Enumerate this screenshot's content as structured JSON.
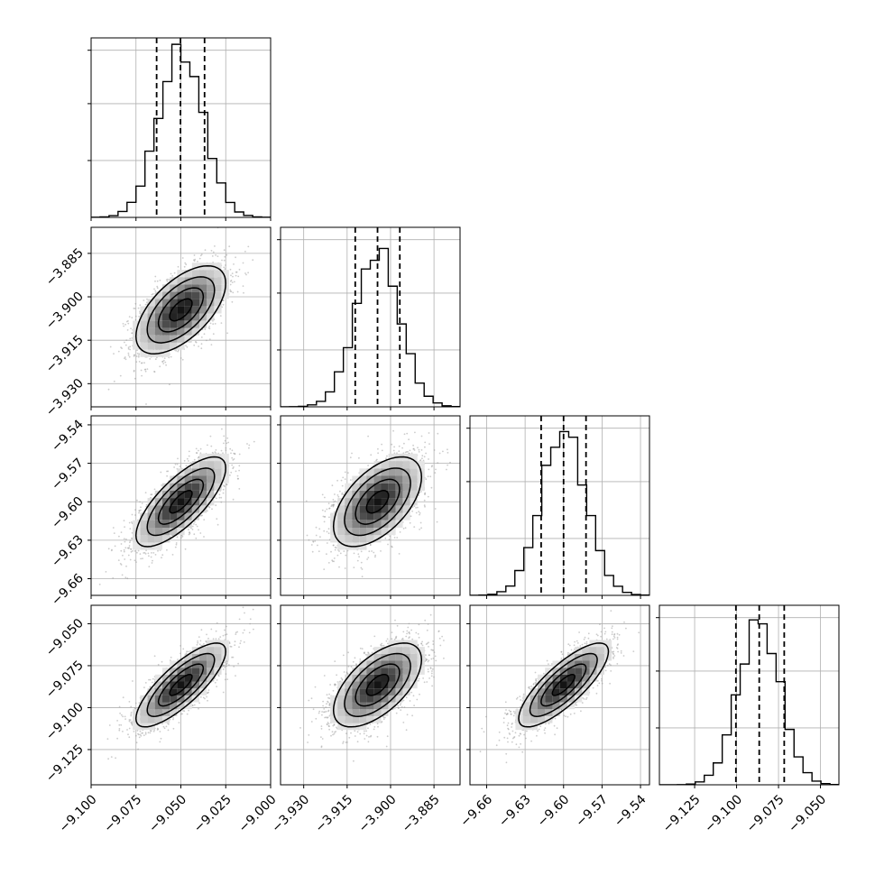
{
  "chart_data": {
    "type": "corner",
    "grid": true,
    "parameters": [
      {
        "ticks": [
          -9.1,
          -9.075,
          -9.05,
          -9.025,
          -9.0
        ],
        "tick_labels": [
          "−9.100",
          "−9.075",
          "−9.050",
          "−9.025",
          "−9.000"
        ],
        "range": [
          -9.1,
          -9.0
        ],
        "center": -9.05,
        "sigma": 0.0125,
        "quantiles": [
          -9.0635,
          -9.0502,
          -9.0368
        ],
        "hist_peak": 0.93
      },
      {
        "ticks": [
          -3.93,
          -3.915,
          -3.9,
          -3.885
        ],
        "tick_labels": [
          "−3.930",
          "−3.915",
          "−3.900",
          "−3.885"
        ],
        "range": [
          -3.938,
          -3.876
        ],
        "center": -3.9045,
        "sigma": 0.0076,
        "quantiles": [
          -3.9122,
          -3.9045,
          -3.8968
        ],
        "hist_peak": 0.87
      },
      {
        "ticks": [
          -9.66,
          -9.63,
          -9.6,
          -9.57,
          -9.54
        ],
        "tick_labels": [
          "−9.66",
          "−9.63",
          "−9.60",
          "−9.57",
          "−9.54"
        ],
        "range": [
          -9.673,
          -9.533
        ],
        "center": -9.6,
        "sigma": 0.0175,
        "quantiles": [
          -9.6175,
          -9.6,
          -9.5825
        ],
        "hist_peak": 0.92
      },
      {
        "ticks": [
          -9.125,
          -9.1,
          -9.075,
          -9.05
        ],
        "tick_labels": [
          "−9.125",
          "−9.100",
          "−9.075",
          "−9.050"
        ],
        "range": [
          -9.146,
          -9.039
        ],
        "center": -9.0865,
        "sigma": 0.0125,
        "quantiles": [
          -9.1004,
          -9.0865,
          -9.0716
        ],
        "hist_peak": 0.91
      }
    ],
    "correlations": [
      [
        1.0,
        0.6,
        0.75,
        0.8
      ],
      [
        0.6,
        1.0,
        0.55,
        0.6
      ],
      [
        0.75,
        0.55,
        1.0,
        0.8
      ],
      [
        0.8,
        0.6,
        0.8,
        1.0
      ]
    ],
    "contour_levels_sigma": [
      0.5,
      1.0,
      1.5,
      2.0
    ]
  }
}
